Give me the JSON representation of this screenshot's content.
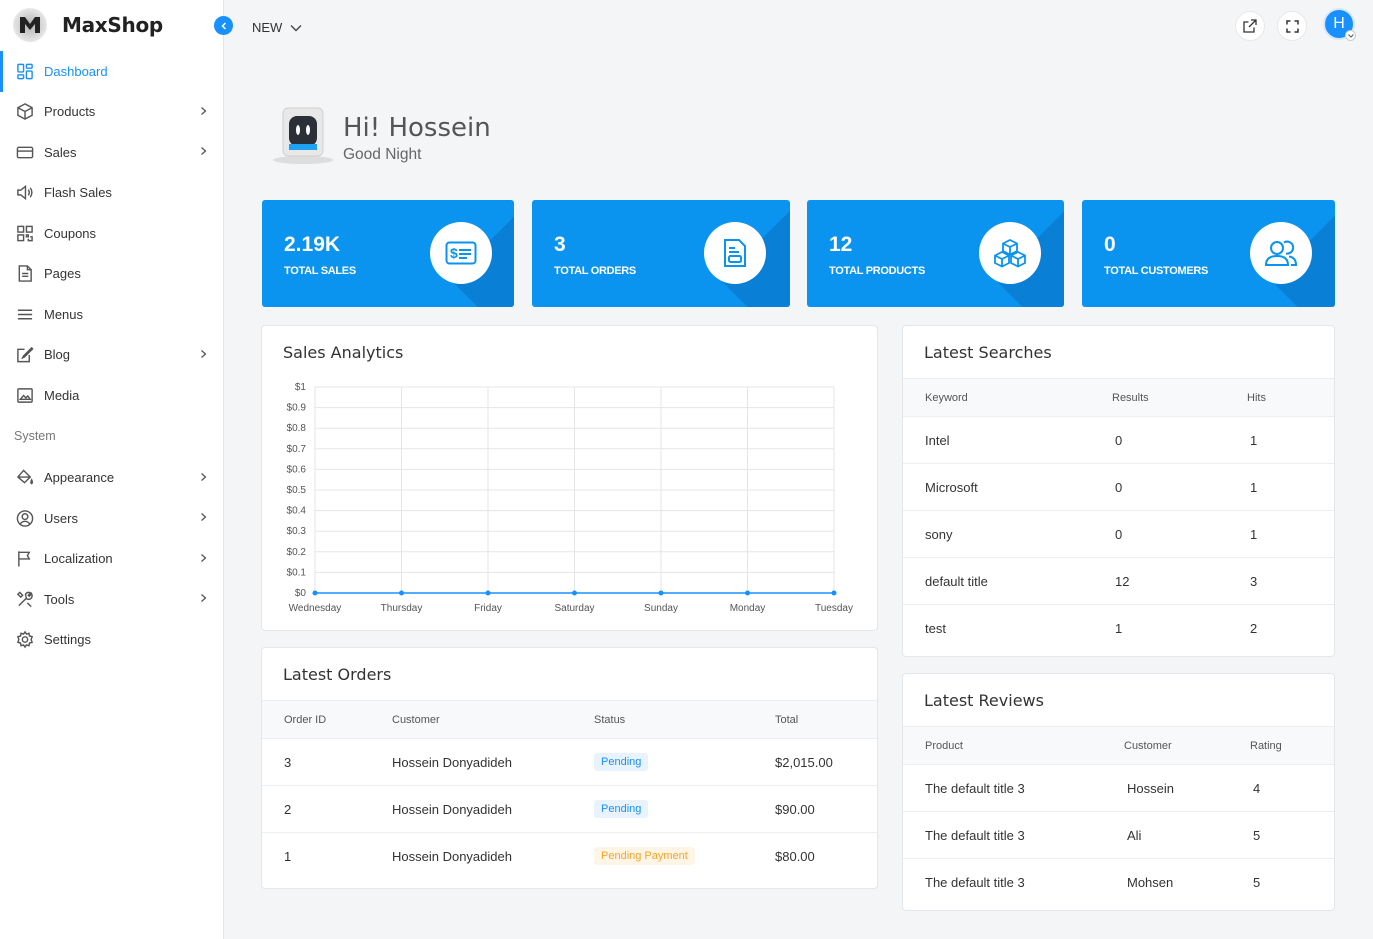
{
  "brand": {
    "name": "MaxShop"
  },
  "topbar": {
    "new_label": "NEW",
    "avatar_initial": "H"
  },
  "sidebar": {
    "items": [
      {
        "label": "Dashboard",
        "icon": "dashboard-icon",
        "active": true,
        "chevron": false
      },
      {
        "label": "Products",
        "icon": "box-icon",
        "chevron": true
      },
      {
        "label": "Sales",
        "icon": "credit-card-icon",
        "chevron": true
      },
      {
        "label": "Flash Sales",
        "icon": "megaphone-icon",
        "chevron": false
      },
      {
        "label": "Coupons",
        "icon": "qr-icon",
        "chevron": false
      },
      {
        "label": "Pages",
        "icon": "page-icon",
        "chevron": false
      },
      {
        "label": "Menus",
        "icon": "menu-icon",
        "chevron": false
      },
      {
        "label": "Blog",
        "icon": "edit-icon",
        "chevron": true
      },
      {
        "label": "Media",
        "icon": "image-icon",
        "chevron": false
      }
    ],
    "section_label": "System",
    "system_items": [
      {
        "label": "Appearance",
        "icon": "paint-bucket-icon",
        "chevron": true
      },
      {
        "label": "Users",
        "icon": "user-circle-icon",
        "chevron": true
      },
      {
        "label": "Localization",
        "icon": "flag-icon",
        "chevron": true
      },
      {
        "label": "Tools",
        "icon": "tools-icon",
        "chevron": true
      },
      {
        "label": "Settings",
        "icon": "gear-icon",
        "chevron": false
      }
    ]
  },
  "greeting": {
    "title": "Hi! Hossein",
    "subtitle": "Good Night"
  },
  "stats": [
    {
      "value": "2.19K",
      "label": "Total Sales",
      "icon": "money-bill-icon"
    },
    {
      "value": "3",
      "label": "Total Orders",
      "icon": "order-document-icon"
    },
    {
      "value": "12",
      "label": "Total Products",
      "icon": "cubes-icon"
    },
    {
      "value": "0",
      "label": "Total Customers",
      "icon": "users-icon"
    }
  ],
  "sales_analytics": {
    "title": "Sales Analytics"
  },
  "chart_data": {
    "type": "line",
    "categories": [
      "Wednesday",
      "Thursday",
      "Friday",
      "Saturday",
      "Sunday",
      "Monday",
      "Tuesday"
    ],
    "values": [
      0,
      0,
      0,
      0,
      0,
      0,
      0
    ],
    "y_ticks": [
      "$0",
      "$0.1",
      "$0.2",
      "$0.3",
      "$0.4",
      "$0.5",
      "$0.6",
      "$0.7",
      "$0.8",
      "$0.9",
      "$1"
    ],
    "ylim": [
      0,
      1
    ],
    "grid": true,
    "color": "#1890ff"
  },
  "latest_orders": {
    "title": "Latest Orders",
    "columns": [
      "Order ID",
      "Customer",
      "Status",
      "Total"
    ],
    "rows": [
      {
        "id": "3",
        "customer": "Hossein Donyadideh",
        "status": "Pending",
        "status_color": "blue",
        "total": "$2,015.00"
      },
      {
        "id": "2",
        "customer": "Hossein Donyadideh",
        "status": "Pending",
        "status_color": "blue",
        "total": "$90.00"
      },
      {
        "id": "1",
        "customer": "Hossein Donyadideh",
        "status": "Pending Payment",
        "status_color": "orange",
        "total": "$80.00"
      }
    ]
  },
  "latest_searches": {
    "title": "Latest Searches",
    "columns": [
      "Keyword",
      "Results",
      "Hits"
    ],
    "rows": [
      [
        "Intel",
        "0",
        "1"
      ],
      [
        "Microsoft",
        "0",
        "1"
      ],
      [
        "sony",
        "0",
        "1"
      ],
      [
        "default title",
        "12",
        "3"
      ],
      [
        "test",
        "1",
        "2"
      ]
    ]
  },
  "latest_reviews": {
    "title": "Latest Reviews",
    "columns": [
      "Product",
      "Customer",
      "Rating"
    ],
    "rows": [
      [
        "The default title 3",
        "Hossein",
        "4"
      ],
      [
        "The default title 3",
        "Ali",
        "5"
      ],
      [
        "The default title 3",
        "Mohsen",
        "5"
      ]
    ]
  },
  "colors": {
    "accent": "#1890ff",
    "stat_card": "#0a93ef",
    "stat_shadow": "#0a7fd6"
  }
}
